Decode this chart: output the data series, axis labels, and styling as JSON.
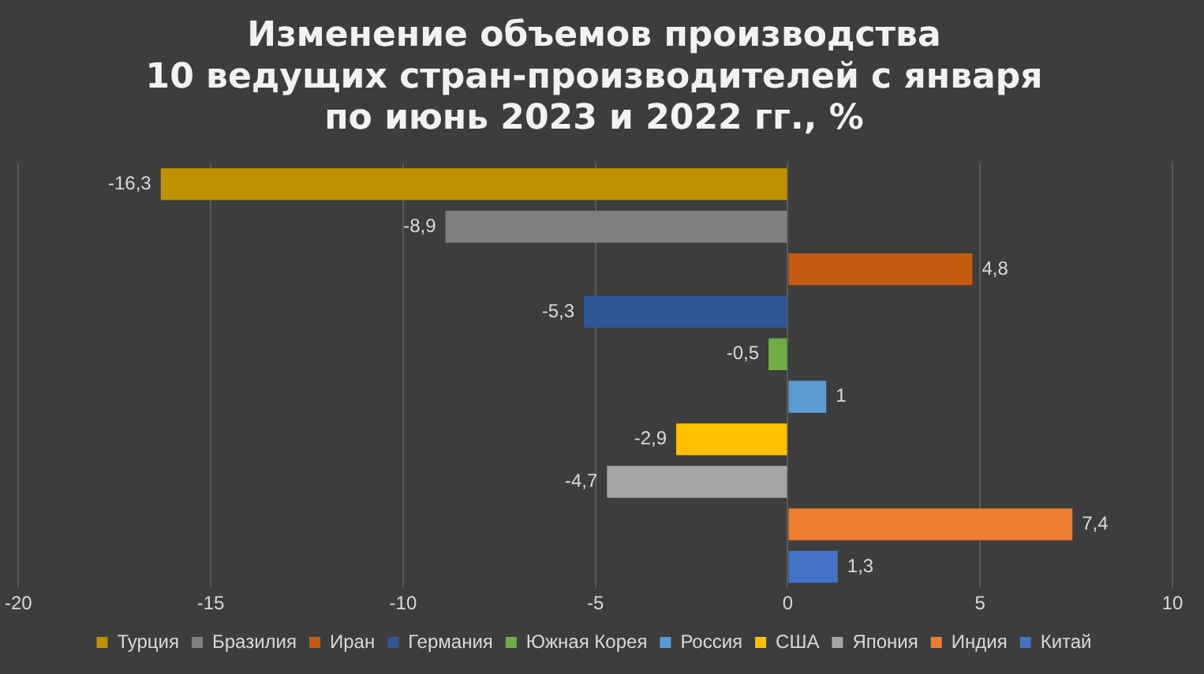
{
  "chart_data": {
    "type": "bar",
    "orientation": "horizontal",
    "title": [
      "Изменение объемов производства",
      "10 ведущих стран-производителей с января",
      "по июнь 2023 и 2022 гг., %"
    ],
    "categories": [
      null,
      null,
      null,
      null,
      null,
      null,
      null,
      null,
      null,
      null
    ],
    "series": [
      {
        "name": "Турция",
        "color": "#bf9000",
        "values": [
          -16.3,
          null,
          null,
          null,
          null,
          null,
          null,
          null,
          null,
          null
        ],
        "value_labels": [
          "-16,3",
          null,
          null,
          null,
          null,
          null,
          null,
          null,
          null,
          null
        ]
      },
      {
        "name": "Бразилия",
        "color": "#7f7f7f",
        "values": [
          null,
          -8.9,
          null,
          null,
          null,
          null,
          null,
          null,
          null,
          null
        ],
        "value_labels": [
          null,
          "-8,9",
          null,
          null,
          null,
          null,
          null,
          null,
          null,
          null
        ]
      },
      {
        "name": "Иран",
        "color": "#c55a11",
        "values": [
          null,
          null,
          4.8,
          null,
          null,
          null,
          null,
          null,
          null,
          null
        ],
        "value_labels": [
          null,
          null,
          "4,8",
          null,
          null,
          null,
          null,
          null,
          null,
          null
        ]
      },
      {
        "name": "Германия",
        "color": "#2f5597",
        "values": [
          null,
          null,
          null,
          -5.3,
          null,
          null,
          null,
          null,
          null,
          null
        ],
        "value_labels": [
          null,
          null,
          null,
          "-5,3",
          null,
          null,
          null,
          null,
          null,
          null
        ]
      },
      {
        "name": "Южная Корея",
        "color": "#70ad47",
        "values": [
          null,
          null,
          null,
          null,
          -0.5,
          null,
          null,
          null,
          null,
          null
        ],
        "value_labels": [
          null,
          null,
          null,
          null,
          "-0,5",
          null,
          null,
          null,
          null,
          null
        ]
      },
      {
        "name": "Россия",
        "color": "#5b9bd5",
        "values": [
          null,
          null,
          null,
          null,
          null,
          1,
          null,
          null,
          null,
          null
        ],
        "value_labels": [
          null,
          null,
          null,
          null,
          null,
          "1",
          null,
          null,
          null,
          null
        ]
      },
      {
        "name": "США",
        "color": "#ffc000",
        "values": [
          null,
          null,
          null,
          null,
          null,
          null,
          -2.9,
          null,
          null,
          null
        ],
        "value_labels": [
          null,
          null,
          null,
          null,
          null,
          null,
          "-2,9",
          null,
          null,
          null
        ]
      },
      {
        "name": "Япония",
        "color": "#a5a5a5",
        "values": [
          null,
          null,
          null,
          null,
          null,
          null,
          null,
          -4.7,
          null,
          null
        ],
        "value_labels": [
          null,
          null,
          null,
          null,
          null,
          null,
          null,
          "-4,7",
          null,
          null
        ]
      },
      {
        "name": "Индия",
        "color": "#ed7d31",
        "values": [
          null,
          null,
          null,
          null,
          null,
          null,
          null,
          null,
          7.4,
          null
        ],
        "value_labels": [
          null,
          null,
          null,
          null,
          null,
          null,
          null,
          null,
          "7,4",
          null
        ]
      },
      {
        "name": "Китай",
        "color": "#4472c4",
        "values": [
          null,
          null,
          null,
          null,
          null,
          null,
          null,
          null,
          null,
          1.3
        ],
        "value_labels": [
          null,
          null,
          null,
          null,
          null,
          null,
          null,
          null,
          null,
          "1,3"
        ]
      }
    ],
    "xlim": [
      -20,
      10
    ],
    "xticks": [
      -20,
      -15,
      -10,
      -5,
      0,
      5,
      10
    ],
    "grid": "x",
    "legend": "bottom"
  }
}
